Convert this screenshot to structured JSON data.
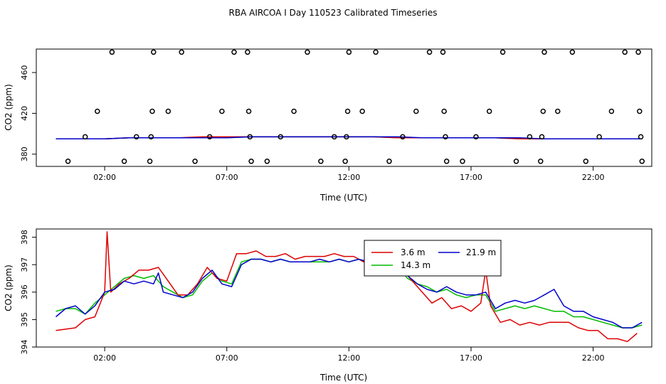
{
  "figure_title": "RBA AIRCOA I  Day 110523  Calibrated Timeseries",
  "chart_data": [
    {
      "type": "scatter",
      "title": "",
      "xlabel": "Time (UTC)",
      "ylabel": "CO2 (ppm)",
      "xlim": [
        -0.8,
        24.4
      ],
      "ylim": [
        368,
        483
      ],
      "x_ticks": [
        2,
        7,
        12,
        17,
        22
      ],
      "x_tick_labels": [
        "02:00",
        "07:00",
        "12:00",
        "17:00",
        "22:00"
      ],
      "y_ticks": [
        380,
        420,
        460
      ],
      "y_tick_labels": [
        "380",
        "420",
        "460"
      ],
      "legend": "none",
      "outliers": [
        {
          "x": 0.5,
          "y": 373
        },
        {
          "x": 1.2,
          "y": 397
        },
        {
          "x": 1.7,
          "y": 422
        },
        {
          "x": 2.3,
          "y": 480
        },
        {
          "x": 2.8,
          "y": 373
        },
        {
          "x": 3.3,
          "y": 397
        },
        {
          "x": 3.85,
          "y": 373
        },
        {
          "x": 3.9,
          "y": 397
        },
        {
          "x": 3.95,
          "y": 422
        },
        {
          "x": 4.0,
          "y": 480
        },
        {
          "x": 4.6,
          "y": 422
        },
        {
          "x": 5.15,
          "y": 480
        },
        {
          "x": 5.7,
          "y": 373
        },
        {
          "x": 6.3,
          "y": 397
        },
        {
          "x": 6.8,
          "y": 422
        },
        {
          "x": 7.3,
          "y": 480
        },
        {
          "x": 7.85,
          "y": 480
        },
        {
          "x": 7.9,
          "y": 422
        },
        {
          "x": 7.95,
          "y": 397
        },
        {
          "x": 8.0,
          "y": 373
        },
        {
          "x": 8.65,
          "y": 373
        },
        {
          "x": 9.2,
          "y": 397
        },
        {
          "x": 9.75,
          "y": 422
        },
        {
          "x": 10.3,
          "y": 480
        },
        {
          "x": 10.85,
          "y": 373
        },
        {
          "x": 11.4,
          "y": 397
        },
        {
          "x": 11.85,
          "y": 373
        },
        {
          "x": 11.9,
          "y": 397
        },
        {
          "x": 11.95,
          "y": 422
        },
        {
          "x": 12.0,
          "y": 480
        },
        {
          "x": 12.55,
          "y": 422
        },
        {
          "x": 13.1,
          "y": 480
        },
        {
          "x": 13.65,
          "y": 373
        },
        {
          "x": 14.2,
          "y": 397
        },
        {
          "x": 14.75,
          "y": 422
        },
        {
          "x": 15.3,
          "y": 480
        },
        {
          "x": 15.85,
          "y": 480
        },
        {
          "x": 15.9,
          "y": 422
        },
        {
          "x": 15.95,
          "y": 397
        },
        {
          "x": 16.0,
          "y": 373
        },
        {
          "x": 16.65,
          "y": 373
        },
        {
          "x": 17.2,
          "y": 397
        },
        {
          "x": 17.75,
          "y": 422
        },
        {
          "x": 18.3,
          "y": 480
        },
        {
          "x": 18.85,
          "y": 373
        },
        {
          "x": 19.4,
          "y": 397
        },
        {
          "x": 19.85,
          "y": 373
        },
        {
          "x": 19.9,
          "y": 397
        },
        {
          "x": 19.95,
          "y": 422
        },
        {
          "x": 20.0,
          "y": 480
        },
        {
          "x": 20.55,
          "y": 422
        },
        {
          "x": 21.15,
          "y": 480
        },
        {
          "x": 21.7,
          "y": 373
        },
        {
          "x": 22.25,
          "y": 397
        },
        {
          "x": 22.75,
          "y": 422
        },
        {
          "x": 23.3,
          "y": 480
        },
        {
          "x": 23.85,
          "y": 480
        },
        {
          "x": 23.9,
          "y": 422
        },
        {
          "x": 23.95,
          "y": 397
        },
        {
          "x": 24.0,
          "y": 373
        }
      ],
      "series": [
        {
          "name": "3.6 m",
          "color": "#dd0000",
          "values": [
            395,
            395,
            395,
            396,
            396,
            396,
            397,
            397,
            397,
            397,
            397,
            397,
            397,
            397,
            396,
            396,
            396,
            396,
            396,
            395,
            395,
            395,
            395,
            395,
            395
          ]
        },
        {
          "name": "14.3 m",
          "color": "#00bb00",
          "values": [
            395,
            395,
            395,
            396,
            396,
            396,
            396,
            396,
            397,
            397,
            397,
            397,
            397,
            397,
            396,
            396,
            396,
            396,
            396,
            395,
            395,
            395,
            395,
            395,
            395
          ]
        },
        {
          "name": "21.9 m",
          "color": "#0000cc",
          "values": [
            395,
            395,
            395,
            396,
            396,
            396,
            396,
            396,
            397,
            397,
            397,
            397,
            397,
            397,
            397,
            396,
            396,
            396,
            396,
            396,
            395,
            395,
            395,
            395,
            395
          ]
        }
      ]
    },
    {
      "type": "line",
      "title": "",
      "xlabel": "Time (UTC)",
      "ylabel": "CO2 (ppm)",
      "xlim": [
        -0.8,
        24.4
      ],
      "ylim": [
        394.0,
        398.3
      ],
      "x_ticks": [
        2,
        7,
        12,
        17,
        22
      ],
      "x_tick_labels": [
        "02:00",
        "07:00",
        "12:00",
        "17:00",
        "22:00"
      ],
      "y_ticks": [
        394,
        395,
        396,
        397,
        398
      ],
      "y_tick_labels": [
        "394",
        "395",
        "396",
        "397",
        "398"
      ],
      "legend": "top-right",
      "series": [
        {
          "name": "3.6 m",
          "color": "#dd0000",
          "points": [
            [
              0,
              394.6
            ],
            [
              0.4,
              394.65
            ],
            [
              0.8,
              394.7
            ],
            [
              1.2,
              395.0
            ],
            [
              1.6,
              395.1
            ],
            [
              2.0,
              396.0
            ],
            [
              2.1,
              398.2
            ],
            [
              2.25,
              396.0
            ],
            [
              2.6,
              396.3
            ],
            [
              3.0,
              396.5
            ],
            [
              3.4,
              396.8
            ],
            [
              3.8,
              396.8
            ],
            [
              4.2,
              396.9
            ],
            [
              4.6,
              396.4
            ],
            [
              5.0,
              395.9
            ],
            [
              5.4,
              395.9
            ],
            [
              5.8,
              396.3
            ],
            [
              6.2,
              396.9
            ],
            [
              6.6,
              396.5
            ],
            [
              7.0,
              396.4
            ],
            [
              7.4,
              397.4
            ],
            [
              7.8,
              397.4
            ],
            [
              8.2,
              397.5
            ],
            [
              8.6,
              397.3
            ],
            [
              9.0,
              397.3
            ],
            [
              9.4,
              397.4
            ],
            [
              9.8,
              397.2
            ],
            [
              10.2,
              397.3
            ],
            [
              10.6,
              397.3
            ],
            [
              11.0,
              397.3
            ],
            [
              11.4,
              397.4
            ],
            [
              11.8,
              397.3
            ],
            [
              12.2,
              397.3
            ],
            [
              12.6,
              397.1
            ],
            [
              13.0,
              397.1
            ],
            [
              13.4,
              397.2
            ],
            [
              13.8,
              397.0
            ],
            [
              14.2,
              396.8
            ],
            [
              14.6,
              396.4
            ],
            [
              15.0,
              396.0
            ],
            [
              15.4,
              395.6
            ],
            [
              15.8,
              395.8
            ],
            [
              16.2,
              395.4
            ],
            [
              16.6,
              395.5
            ],
            [
              17.0,
              395.3
            ],
            [
              17.4,
              395.6
            ],
            [
              17.6,
              396.8
            ],
            [
              17.8,
              395.5
            ],
            [
              18.2,
              394.9
            ],
            [
              18.6,
              395.0
            ],
            [
              19.0,
              394.8
            ],
            [
              19.4,
              394.9
            ],
            [
              19.8,
              394.8
            ],
            [
              20.2,
              394.9
            ],
            [
              20.6,
              394.9
            ],
            [
              21.0,
              394.9
            ],
            [
              21.4,
              394.7
            ],
            [
              21.8,
              394.6
            ],
            [
              22.2,
              394.6
            ],
            [
              22.6,
              394.3
            ],
            [
              23.0,
              394.3
            ],
            [
              23.4,
              394.2
            ],
            [
              23.8,
              394.5
            ]
          ]
        },
        {
          "name": "14.3 m",
          "color": "#00bb00",
          "points": [
            [
              0,
              395.3
            ],
            [
              0.4,
              395.4
            ],
            [
              0.8,
              395.4
            ],
            [
              1.2,
              395.2
            ],
            [
              1.6,
              395.6
            ],
            [
              2.0,
              395.9
            ],
            [
              2.4,
              396.2
            ],
            [
              2.8,
              396.5
            ],
            [
              3.2,
              396.6
            ],
            [
              3.6,
              396.5
            ],
            [
              4.0,
              396.6
            ],
            [
              4.4,
              396.2
            ],
            [
              4.8,
              396.0
            ],
            [
              5.2,
              395.8
            ],
            [
              5.6,
              395.9
            ],
            [
              6.0,
              396.4
            ],
            [
              6.4,
              396.7
            ],
            [
              6.8,
              396.4
            ],
            [
              7.2,
              396.3
            ],
            [
              7.6,
              397.1
            ],
            [
              8.0,
              397.2
            ],
            [
              8.4,
              397.2
            ],
            [
              8.8,
              397.1
            ],
            [
              9.2,
              397.2
            ],
            [
              9.6,
              397.1
            ],
            [
              10.0,
              397.1
            ],
            [
              10.4,
              397.1
            ],
            [
              10.8,
              397.1
            ],
            [
              11.2,
              397.1
            ],
            [
              11.6,
              397.2
            ],
            [
              12.0,
              397.1
            ],
            [
              12.4,
              397.2
            ],
            [
              12.8,
              397.1
            ],
            [
              13.2,
              397.1
            ],
            [
              13.6,
              397.0
            ],
            [
              14.0,
              396.9
            ],
            [
              14.4,
              396.5
            ],
            [
              14.8,
              396.3
            ],
            [
              15.2,
              396.2
            ],
            [
              15.6,
              396.0
            ],
            [
              16.0,
              396.1
            ],
            [
              16.4,
              395.9
            ],
            [
              16.8,
              395.8
            ],
            [
              17.2,
              395.9
            ],
            [
              17.6,
              395.9
            ],
            [
              18.0,
              395.3
            ],
            [
              18.4,
              395.4
            ],
            [
              18.8,
              395.5
            ],
            [
              19.2,
              395.4
            ],
            [
              19.6,
              395.5
            ],
            [
              20.0,
              395.4
            ],
            [
              20.4,
              395.3
            ],
            [
              20.8,
              395.3
            ],
            [
              21.2,
              395.1
            ],
            [
              21.6,
              395.1
            ],
            [
              22.0,
              395.0
            ],
            [
              22.4,
              394.9
            ],
            [
              22.8,
              394.8
            ],
            [
              23.2,
              394.7
            ],
            [
              23.6,
              394.7
            ],
            [
              24.0,
              394.8
            ]
          ]
        },
        {
          "name": "21.9 m",
          "color": "#0000cc",
          "points": [
            [
              0,
              395.1
            ],
            [
              0.4,
              395.4
            ],
            [
              0.8,
              395.5
            ],
            [
              1.2,
              395.2
            ],
            [
              1.6,
              395.5
            ],
            [
              2.0,
              396.0
            ],
            [
              2.4,
              396.1
            ],
            [
              2.8,
              396.4
            ],
            [
              3.2,
              396.3
            ],
            [
              3.6,
              396.4
            ],
            [
              4.0,
              396.3
            ],
            [
              4.2,
              396.7
            ],
            [
              4.4,
              396.0
            ],
            [
              4.8,
              395.9
            ],
            [
              5.2,
              395.8
            ],
            [
              5.6,
              396.0
            ],
            [
              6.0,
              396.5
            ],
            [
              6.4,
              396.8
            ],
            [
              6.8,
              396.3
            ],
            [
              7.2,
              396.2
            ],
            [
              7.6,
              397.0
            ],
            [
              8.0,
              397.2
            ],
            [
              8.4,
              397.2
            ],
            [
              8.8,
              397.1
            ],
            [
              9.2,
              397.2
            ],
            [
              9.6,
              397.1
            ],
            [
              10.0,
              397.1
            ],
            [
              10.4,
              397.1
            ],
            [
              10.8,
              397.2
            ],
            [
              11.2,
              397.1
            ],
            [
              11.6,
              397.2
            ],
            [
              12.0,
              397.1
            ],
            [
              12.4,
              397.2
            ],
            [
              12.8,
              397.1
            ],
            [
              13.2,
              397.1
            ],
            [
              13.6,
              397.0
            ],
            [
              14.0,
              397.0
            ],
            [
              14.4,
              396.6
            ],
            [
              14.8,
              396.3
            ],
            [
              15.2,
              396.1
            ],
            [
              15.6,
              396.0
            ],
            [
              16.0,
              396.2
            ],
            [
              16.4,
              396.0
            ],
            [
              16.8,
              395.9
            ],
            [
              17.2,
              395.9
            ],
            [
              17.6,
              396.0
            ],
            [
              18.0,
              395.4
            ],
            [
              18.4,
              395.6
            ],
            [
              18.8,
              395.7
            ],
            [
              19.2,
              395.6
            ],
            [
              19.6,
              395.7
            ],
            [
              20.0,
              395.9
            ],
            [
              20.4,
              396.1
            ],
            [
              20.8,
              395.5
            ],
            [
              21.2,
              395.3
            ],
            [
              21.6,
              395.3
            ],
            [
              22.0,
              395.1
            ],
            [
              22.4,
              395.0
            ],
            [
              22.8,
              394.9
            ],
            [
              23.2,
              394.7
            ],
            [
              23.6,
              394.7
            ],
            [
              24.0,
              394.9
            ]
          ]
        }
      ]
    }
  ]
}
